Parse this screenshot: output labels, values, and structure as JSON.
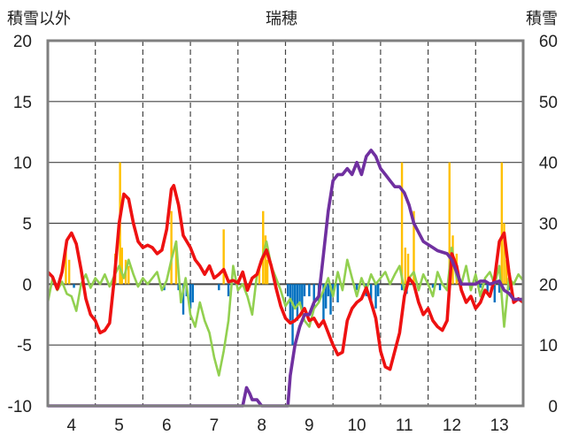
{
  "chart_data": {
    "type": "line",
    "title": "瑞穂",
    "y_left_label": "積雪以外",
    "y_right_label": "積雪",
    "y_left_ticks": [
      20,
      15,
      10,
      5,
      0,
      -5,
      -10
    ],
    "y_right_ticks": [
      60,
      50,
      40,
      30,
      20,
      10,
      0
    ],
    "x_ticks": [
      4,
      5,
      6,
      7,
      8,
      9,
      10,
      11,
      12,
      13
    ],
    "xlim": [
      3.5,
      13.5
    ],
    "ylim_left": [
      -10,
      20
    ],
    "ylim_right": [
      0,
      60
    ],
    "grid": {
      "vertical_dashed": true,
      "horizontal_solid": true
    },
    "colors": {
      "red": "#ee1111",
      "green": "#92d050",
      "purple": "#7030a0",
      "orange": "#ffc000",
      "blue": "#0070c0",
      "grid": "#444444",
      "frame": "#7f7f7f"
    },
    "red_series": [
      [
        3.5,
        1.0
      ],
      [
        3.6,
        0.6
      ],
      [
        3.7,
        -0.4
      ],
      [
        3.8,
        1.0
      ],
      [
        3.9,
        3.6
      ],
      [
        4.0,
        4.2
      ],
      [
        4.1,
        3.3
      ],
      [
        4.2,
        1.2
      ],
      [
        4.3,
        -1.2
      ],
      [
        4.4,
        -2.5
      ],
      [
        4.5,
        -3.0
      ],
      [
        4.6,
        -4.0
      ],
      [
        4.7,
        -3.8
      ],
      [
        4.8,
        -3.2
      ],
      [
        4.9,
        0.5
      ],
      [
        5.0,
        5.0
      ],
      [
        5.1,
        7.4
      ],
      [
        5.2,
        7.0
      ],
      [
        5.3,
        5.0
      ],
      [
        5.4,
        3.5
      ],
      [
        5.5,
        3.0
      ],
      [
        5.6,
        3.2
      ],
      [
        5.7,
        3.0
      ],
      [
        5.8,
        2.5
      ],
      [
        5.9,
        2.8
      ],
      [
        6.0,
        4.5
      ],
      [
        6.1,
        7.8
      ],
      [
        6.15,
        8.1
      ],
      [
        6.25,
        6.5
      ],
      [
        6.35,
        4.0
      ],
      [
        6.5,
        3.0
      ],
      [
        6.6,
        2.0
      ],
      [
        6.7,
        1.5
      ],
      [
        6.8,
        0.8
      ],
      [
        6.9,
        1.5
      ],
      [
        7.0,
        0.5
      ],
      [
        7.1,
        0.8
      ],
      [
        7.2,
        1.2
      ],
      [
        7.3,
        0.2
      ],
      [
        7.4,
        0.3
      ],
      [
        7.5,
        0.1
      ],
      [
        7.6,
        1.0
      ],
      [
        7.7,
        -0.5
      ],
      [
        7.8,
        0.5
      ],
      [
        7.9,
        0.8
      ],
      [
        8.0,
        2.0
      ],
      [
        8.1,
        2.8
      ],
      [
        8.2,
        1.5
      ],
      [
        8.3,
        -0.3
      ],
      [
        8.4,
        -1.8
      ],
      [
        8.5,
        -2.8
      ],
      [
        8.6,
        -3.2
      ],
      [
        8.7,
        -3.0
      ],
      [
        8.8,
        -2.6
      ],
      [
        8.9,
        -2.0
      ],
      [
        9.0,
        -3.0
      ],
      [
        9.1,
        -2.8
      ],
      [
        9.2,
        -3.5
      ],
      [
        9.3,
        -3.0
      ],
      [
        9.4,
        -4.0
      ],
      [
        9.5,
        -5.0
      ],
      [
        9.6,
        -5.8
      ],
      [
        9.7,
        -5.6
      ],
      [
        9.8,
        -3.0
      ],
      [
        9.9,
        -2.0
      ],
      [
        10.0,
        -1.5
      ],
      [
        10.1,
        -1.2
      ],
      [
        10.2,
        -0.3
      ],
      [
        10.3,
        -1.5
      ],
      [
        10.4,
        -2.8
      ],
      [
        10.5,
        -5.5
      ],
      [
        10.6,
        -6.8
      ],
      [
        10.7,
        -7.0
      ],
      [
        10.8,
        -5.5
      ],
      [
        10.9,
        -4.0
      ],
      [
        11.0,
        -1.0
      ],
      [
        11.1,
        0.5
      ],
      [
        11.2,
        0.0
      ],
      [
        11.3,
        -1.5
      ],
      [
        11.4,
        -2.5
      ],
      [
        11.5,
        -2.0
      ],
      [
        11.6,
        -3.0
      ],
      [
        11.7,
        -3.5
      ],
      [
        11.8,
        -3.8
      ],
      [
        11.9,
        -3.0
      ],
      [
        12.0,
        2.5
      ],
      [
        12.1,
        1.5
      ],
      [
        12.2,
        -0.5
      ],
      [
        12.3,
        -1.5
      ],
      [
        12.4,
        -1.0
      ],
      [
        12.5,
        -2.0
      ],
      [
        12.6,
        -1.5
      ],
      [
        12.7,
        -0.5
      ],
      [
        12.8,
        -1.0
      ],
      [
        12.9,
        0.5
      ],
      [
        13.0,
        3.5
      ],
      [
        13.1,
        4.2
      ],
      [
        13.2,
        1.0
      ],
      [
        13.3,
        -1.5
      ],
      [
        13.4,
        -1.2
      ],
      [
        13.5,
        -1.5
      ]
    ],
    "green_series": [
      [
        3.5,
        -1.5
      ],
      [
        3.6,
        0.5
      ],
      [
        3.7,
        -0.5
      ],
      [
        3.8,
        0.2
      ],
      [
        3.9,
        -0.8
      ],
      [
        4.0,
        -1.0
      ],
      [
        4.1,
        -2.2
      ],
      [
        4.2,
        0.0
      ],
      [
        4.3,
        0.8
      ],
      [
        4.4,
        -0.3
      ],
      [
        4.5,
        0.5
      ],
      [
        4.6,
        0.0
      ],
      [
        4.7,
        0.8
      ],
      [
        4.8,
        -0.2
      ],
      [
        4.9,
        0.7
      ],
      [
        5.0,
        1.5
      ],
      [
        5.1,
        0.5
      ],
      [
        5.2,
        2.0
      ],
      [
        5.3,
        0.8
      ],
      [
        5.4,
        -0.2
      ],
      [
        5.5,
        0.5
      ],
      [
        5.6,
        0.0
      ],
      [
        5.7,
        0.5
      ],
      [
        5.8,
        1.0
      ],
      [
        5.9,
        -0.5
      ],
      [
        6.0,
        0.3
      ],
      [
        6.1,
        2.0
      ],
      [
        6.2,
        3.5
      ],
      [
        6.3,
        -1.5
      ],
      [
        6.4,
        0.5
      ],
      [
        6.5,
        -2.5
      ],
      [
        6.6,
        -3.5
      ],
      [
        6.7,
        -1.5
      ],
      [
        6.8,
        -3.0
      ],
      [
        6.9,
        -4.0
      ],
      [
        7.0,
        -6.0
      ],
      [
        7.1,
        -7.5
      ],
      [
        7.2,
        -5.5
      ],
      [
        7.3,
        -3.0
      ],
      [
        7.4,
        1.5
      ],
      [
        7.5,
        -0.5
      ],
      [
        7.6,
        0.0
      ],
      [
        7.7,
        -1.0
      ],
      [
        7.8,
        -2.5
      ],
      [
        7.9,
        0.8
      ],
      [
        8.0,
        2.0
      ],
      [
        8.1,
        3.5
      ],
      [
        8.2,
        1.5
      ],
      [
        8.3,
        0.5
      ],
      [
        8.4,
        -0.5
      ],
      [
        8.5,
        -1.8
      ],
      [
        8.6,
        -1.2
      ],
      [
        8.7,
        -2.0
      ],
      [
        8.8,
        -1.5
      ],
      [
        8.9,
        -3.0
      ],
      [
        9.0,
        -3.5
      ],
      [
        9.1,
        -2.0
      ],
      [
        9.2,
        -1.5
      ],
      [
        9.3,
        -0.5
      ],
      [
        9.4,
        0.5
      ],
      [
        9.5,
        -1.0
      ],
      [
        9.6,
        1.0
      ],
      [
        9.7,
        -0.5
      ],
      [
        9.8,
        2.0
      ],
      [
        9.9,
        0.5
      ],
      [
        10.0,
        -1.0
      ],
      [
        10.1,
        0.5
      ],
      [
        10.2,
        -0.5
      ],
      [
        10.3,
        0.8
      ],
      [
        10.4,
        0.0
      ],
      [
        10.5,
        0.5
      ],
      [
        10.6,
        1.0
      ],
      [
        10.7,
        0.0
      ],
      [
        10.8,
        0.8
      ],
      [
        10.9,
        1.5
      ],
      [
        11.0,
        -0.5
      ],
      [
        11.1,
        0.5
      ],
      [
        11.2,
        1.0
      ],
      [
        11.3,
        -0.5
      ],
      [
        11.4,
        0.8
      ],
      [
        11.5,
        0.0
      ],
      [
        11.6,
        -1.0
      ],
      [
        11.7,
        1.0
      ],
      [
        11.8,
        0.0
      ],
      [
        11.9,
        -0.5
      ],
      [
        12.0,
        3.0
      ],
      [
        12.1,
        0.5
      ],
      [
        12.2,
        0.0
      ],
      [
        12.3,
        1.5
      ],
      [
        12.4,
        -0.5
      ],
      [
        12.5,
        0.8
      ],
      [
        12.6,
        -1.0
      ],
      [
        12.7,
        0.5
      ],
      [
        12.8,
        1.0
      ],
      [
        12.9,
        0.0
      ],
      [
        13.0,
        1.5
      ],
      [
        13.1,
        -3.5
      ],
      [
        13.2,
        0.5
      ],
      [
        13.3,
        0.0
      ],
      [
        13.4,
        0.8
      ],
      [
        13.5,
        0.3
      ]
    ],
    "purple_series_right": [
      [
        3.5,
        0
      ],
      [
        7.6,
        0
      ],
      [
        7.68,
        3
      ],
      [
        7.75,
        2
      ],
      [
        7.8,
        1
      ],
      [
        7.9,
        1
      ],
      [
        8.0,
        0
      ],
      [
        8.55,
        0
      ],
      [
        8.6,
        5
      ],
      [
        8.7,
        10
      ],
      [
        8.8,
        13
      ],
      [
        8.9,
        15
      ],
      [
        9.0,
        15
      ],
      [
        9.1,
        17
      ],
      [
        9.2,
        18
      ],
      [
        9.3,
        25
      ],
      [
        9.4,
        32
      ],
      [
        9.5,
        37
      ],
      [
        9.6,
        38
      ],
      [
        9.7,
        38
      ],
      [
        9.8,
        39
      ],
      [
        9.9,
        38
      ],
      [
        10.0,
        40
      ],
      [
        10.1,
        38
      ],
      [
        10.2,
        41
      ],
      [
        10.3,
        42
      ],
      [
        10.4,
        41
      ],
      [
        10.5,
        39
      ],
      [
        10.6,
        38
      ],
      [
        10.7,
        37
      ],
      [
        10.8,
        36
      ],
      [
        10.9,
        36
      ],
      [
        11.0,
        35
      ],
      [
        11.1,
        33
      ],
      [
        11.2,
        30
      ],
      [
        11.4,
        27
      ],
      [
        11.6,
        26
      ],
      [
        11.7,
        25.5
      ],
      [
        11.9,
        25
      ],
      [
        12.0,
        24
      ],
      [
        12.1,
        22
      ],
      [
        12.2,
        20
      ],
      [
        12.3,
        20
      ],
      [
        12.5,
        20
      ],
      [
        12.6,
        20.5
      ],
      [
        12.7,
        20.5
      ],
      [
        12.8,
        20
      ],
      [
        13.0,
        20.5
      ],
      [
        13.1,
        19
      ],
      [
        13.2,
        18.5
      ],
      [
        13.3,
        17.5
      ],
      [
        13.5,
        17.5
      ]
    ],
    "orange_bars": [
      [
        3.88,
        3.0
      ],
      [
        3.95,
        2.0
      ],
      [
        4.92,
        2.5
      ],
      [
        5.02,
        10.0
      ],
      [
        5.06,
        3.0
      ],
      [
        5.14,
        2.0
      ],
      [
        5.2,
        1.5
      ],
      [
        6.1,
        6.0
      ],
      [
        6.2,
        3.5
      ],
      [
        7.2,
        4.5
      ],
      [
        7.95,
        1.5
      ],
      [
        8.03,
        6.0
      ],
      [
        8.08,
        4.0
      ],
      [
        8.12,
        2.0
      ],
      [
        10.95,
        10.0
      ],
      [
        11.02,
        3.0
      ],
      [
        11.08,
        2.5
      ],
      [
        11.2,
        6.0
      ],
      [
        11.95,
        10.0
      ],
      [
        12.02,
        4.0
      ],
      [
        12.1,
        2.5
      ],
      [
        13.05,
        10.0
      ],
      [
        13.1,
        5.0
      ],
      [
        13.15,
        2.0
      ]
    ],
    "blue_bars": [
      [
        4.05,
        -0.3
      ],
      [
        5.95,
        -0.5
      ],
      [
        6.25,
        -0.5
      ],
      [
        6.35,
        -2.5
      ],
      [
        6.42,
        -1.0
      ],
      [
        6.5,
        -2.0
      ],
      [
        6.55,
        -1.5
      ],
      [
        7.1,
        -0.5
      ],
      [
        7.3,
        -1.0
      ],
      [
        8.55,
        -1.0
      ],
      [
        8.6,
        -3.0
      ],
      [
        8.65,
        -5.0
      ],
      [
        8.7,
        -2.0
      ],
      [
        8.75,
        -3.0
      ],
      [
        8.8,
        -1.5
      ],
      [
        8.85,
        -2.5
      ],
      [
        8.9,
        -1.0
      ],
      [
        9.0,
        -1.0
      ],
      [
        9.1,
        -2.0
      ],
      [
        9.2,
        -1.5
      ],
      [
        9.3,
        -3.0
      ],
      [
        9.35,
        -2.0
      ],
      [
        9.4,
        -1.0
      ],
      [
        9.45,
        -2.5
      ],
      [
        9.5,
        -1.0
      ],
      [
        9.6,
        -1.5
      ],
      [
        10.0,
        -0.5
      ],
      [
        10.2,
        -1.0
      ],
      [
        10.3,
        -1.5
      ],
      [
        10.4,
        -2.0
      ],
      [
        10.45,
        -1.0
      ],
      [
        10.95,
        -0.5
      ],
      [
        11.05,
        -0.8
      ],
      [
        11.6,
        -0.3
      ],
      [
        11.75,
        -0.5
      ],
      [
        12.4,
        -0.5
      ],
      [
        12.6,
        -0.3
      ],
      [
        12.75,
        -0.8
      ],
      [
        12.9,
        -1.5
      ],
      [
        13.0,
        -0.7
      ],
      [
        13.2,
        -0.5
      ]
    ]
  }
}
